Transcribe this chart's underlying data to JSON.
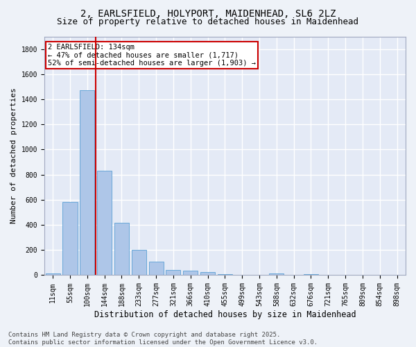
{
  "title_line1": "2, EARLSFIELD, HOLYPORT, MAIDENHEAD, SL6 2LZ",
  "title_line2": "Size of property relative to detached houses in Maidenhead",
  "xlabel": "Distribution of detached houses by size in Maidenhead",
  "ylabel": "Number of detached properties",
  "bar_color": "#aec6e8",
  "bar_edge_color": "#5a9fd4",
  "categories": [
    "11sqm",
    "55sqm",
    "100sqm",
    "144sqm",
    "188sqm",
    "233sqm",
    "277sqm",
    "321sqm",
    "366sqm",
    "410sqm",
    "455sqm",
    "499sqm",
    "543sqm",
    "588sqm",
    "632sqm",
    "676sqm",
    "721sqm",
    "765sqm",
    "809sqm",
    "854sqm",
    "898sqm"
  ],
  "values": [
    15,
    585,
    1470,
    830,
    415,
    200,
    105,
    40,
    35,
    25,
    10,
    0,
    0,
    15,
    0,
    10,
    0,
    0,
    0,
    0,
    0
  ],
  "vline_x": 2.5,
  "vline_color": "#cc0000",
  "annotation_text": "2 EARLSFIELD: 134sqm\n← 47% of detached houses are smaller (1,717)\n52% of semi-detached houses are larger (1,903) →",
  "annotation_box_color": "#ffffff",
  "annotation_box_edge_color": "#cc0000",
  "ylim": [
    0,
    1900
  ],
  "yticks": [
    0,
    200,
    400,
    600,
    800,
    1000,
    1200,
    1400,
    1600,
    1800
  ],
  "bg_color": "#eef2f8",
  "plot_bg_color": "#e4eaf6",
  "grid_color": "#ffffff",
  "footer_text": "Contains HM Land Registry data © Crown copyright and database right 2025.\nContains public sector information licensed under the Open Government Licence v3.0.",
  "title_fontsize": 10,
  "subtitle_fontsize": 9,
  "tick_fontsize": 7,
  "xlabel_fontsize": 8.5,
  "ylabel_fontsize": 8,
  "footer_fontsize": 6.5,
  "annotation_fontsize": 7.5
}
